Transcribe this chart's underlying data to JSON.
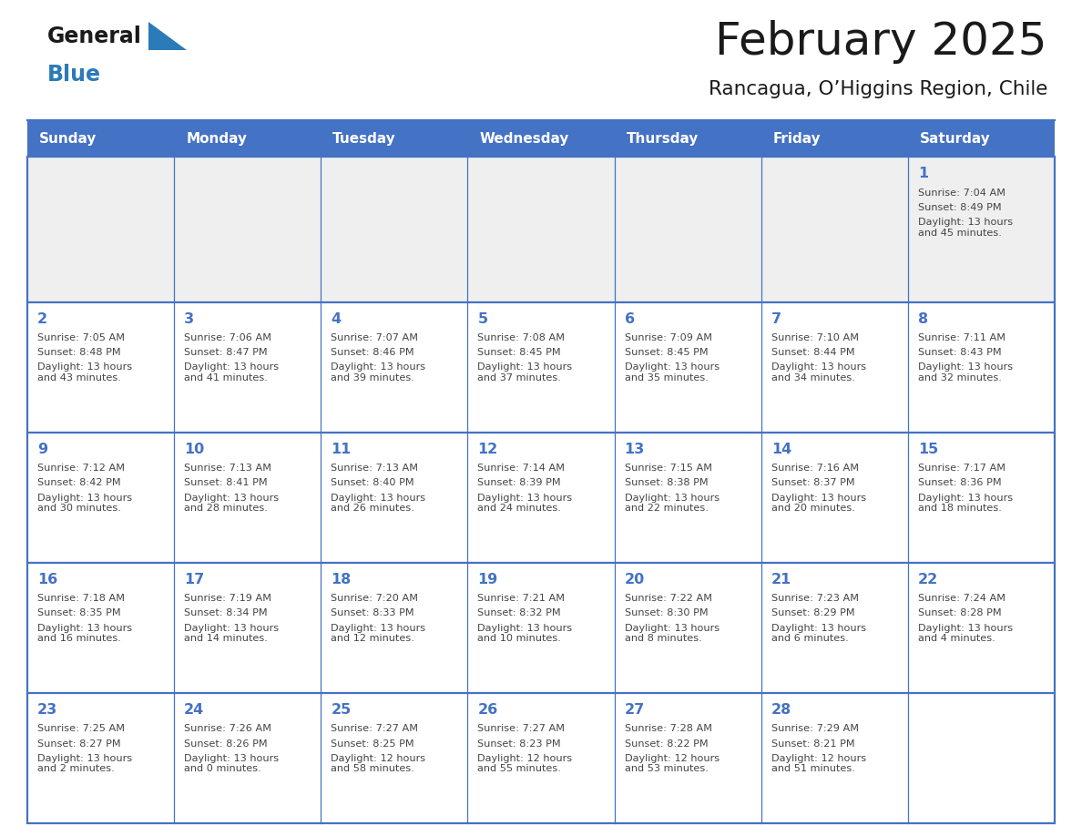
{
  "title": "February 2025",
  "subtitle": "Rancagua, O’Higgins Region, Chile",
  "days_of_week": [
    "Sunday",
    "Monday",
    "Tuesday",
    "Wednesday",
    "Thursday",
    "Friday",
    "Saturday"
  ],
  "header_bg": "#4472C4",
  "header_text": "#FFFFFF",
  "cell_bg_light": "#EFEFEF",
  "cell_bg_white": "#FFFFFF",
  "line_color": "#4472C4",
  "title_color": "#1a1a1a",
  "text_color": "#444444",
  "day_num_color": "#4472C4",
  "logo_general_color": "#1a1a1a",
  "logo_blue_color": "#2B7BB9",
  "calendar_data": [
    [
      null,
      null,
      null,
      null,
      null,
      null,
      {
        "day": 1,
        "sunrise": "7:04 AM",
        "sunset": "8:49 PM",
        "daylight": "13 hours\nand 45 minutes."
      }
    ],
    [
      {
        "day": 2,
        "sunrise": "7:05 AM",
        "sunset": "8:48 PM",
        "daylight": "13 hours\nand 43 minutes."
      },
      {
        "day": 3,
        "sunrise": "7:06 AM",
        "sunset": "8:47 PM",
        "daylight": "13 hours\nand 41 minutes."
      },
      {
        "day": 4,
        "sunrise": "7:07 AM",
        "sunset": "8:46 PM",
        "daylight": "13 hours\nand 39 minutes."
      },
      {
        "day": 5,
        "sunrise": "7:08 AM",
        "sunset": "8:45 PM",
        "daylight": "13 hours\nand 37 minutes."
      },
      {
        "day": 6,
        "sunrise": "7:09 AM",
        "sunset": "8:45 PM",
        "daylight": "13 hours\nand 35 minutes."
      },
      {
        "day": 7,
        "sunrise": "7:10 AM",
        "sunset": "8:44 PM",
        "daylight": "13 hours\nand 34 minutes."
      },
      {
        "day": 8,
        "sunrise": "7:11 AM",
        "sunset": "8:43 PM",
        "daylight": "13 hours\nand 32 minutes."
      }
    ],
    [
      {
        "day": 9,
        "sunrise": "7:12 AM",
        "sunset": "8:42 PM",
        "daylight": "13 hours\nand 30 minutes."
      },
      {
        "day": 10,
        "sunrise": "7:13 AM",
        "sunset": "8:41 PM",
        "daylight": "13 hours\nand 28 minutes."
      },
      {
        "day": 11,
        "sunrise": "7:13 AM",
        "sunset": "8:40 PM",
        "daylight": "13 hours\nand 26 minutes."
      },
      {
        "day": 12,
        "sunrise": "7:14 AM",
        "sunset": "8:39 PM",
        "daylight": "13 hours\nand 24 minutes."
      },
      {
        "day": 13,
        "sunrise": "7:15 AM",
        "sunset": "8:38 PM",
        "daylight": "13 hours\nand 22 minutes."
      },
      {
        "day": 14,
        "sunrise": "7:16 AM",
        "sunset": "8:37 PM",
        "daylight": "13 hours\nand 20 minutes."
      },
      {
        "day": 15,
        "sunrise": "7:17 AM",
        "sunset": "8:36 PM",
        "daylight": "13 hours\nand 18 minutes."
      }
    ],
    [
      {
        "day": 16,
        "sunrise": "7:18 AM",
        "sunset": "8:35 PM",
        "daylight": "13 hours\nand 16 minutes."
      },
      {
        "day": 17,
        "sunrise": "7:19 AM",
        "sunset": "8:34 PM",
        "daylight": "13 hours\nand 14 minutes."
      },
      {
        "day": 18,
        "sunrise": "7:20 AM",
        "sunset": "8:33 PM",
        "daylight": "13 hours\nand 12 minutes."
      },
      {
        "day": 19,
        "sunrise": "7:21 AM",
        "sunset": "8:32 PM",
        "daylight": "13 hours\nand 10 minutes."
      },
      {
        "day": 20,
        "sunrise": "7:22 AM",
        "sunset": "8:30 PM",
        "daylight": "13 hours\nand 8 minutes."
      },
      {
        "day": 21,
        "sunrise": "7:23 AM",
        "sunset": "8:29 PM",
        "daylight": "13 hours\nand 6 minutes."
      },
      {
        "day": 22,
        "sunrise": "7:24 AM",
        "sunset": "8:28 PM",
        "daylight": "13 hours\nand 4 minutes."
      }
    ],
    [
      {
        "day": 23,
        "sunrise": "7:25 AM",
        "sunset": "8:27 PM",
        "daylight": "13 hours\nand 2 minutes."
      },
      {
        "day": 24,
        "sunrise": "7:26 AM",
        "sunset": "8:26 PM",
        "daylight": "13 hours\nand 0 minutes."
      },
      {
        "day": 25,
        "sunrise": "7:27 AM",
        "sunset": "8:25 PM",
        "daylight": "12 hours\nand 58 minutes."
      },
      {
        "day": 26,
        "sunrise": "7:27 AM",
        "sunset": "8:23 PM",
        "daylight": "12 hours\nand 55 minutes."
      },
      {
        "day": 27,
        "sunrise": "7:28 AM",
        "sunset": "8:22 PM",
        "daylight": "12 hours\nand 53 minutes."
      },
      {
        "day": 28,
        "sunrise": "7:29 AM",
        "sunset": "8:21 PM",
        "daylight": "12 hours\nand 51 minutes."
      },
      null
    ]
  ]
}
